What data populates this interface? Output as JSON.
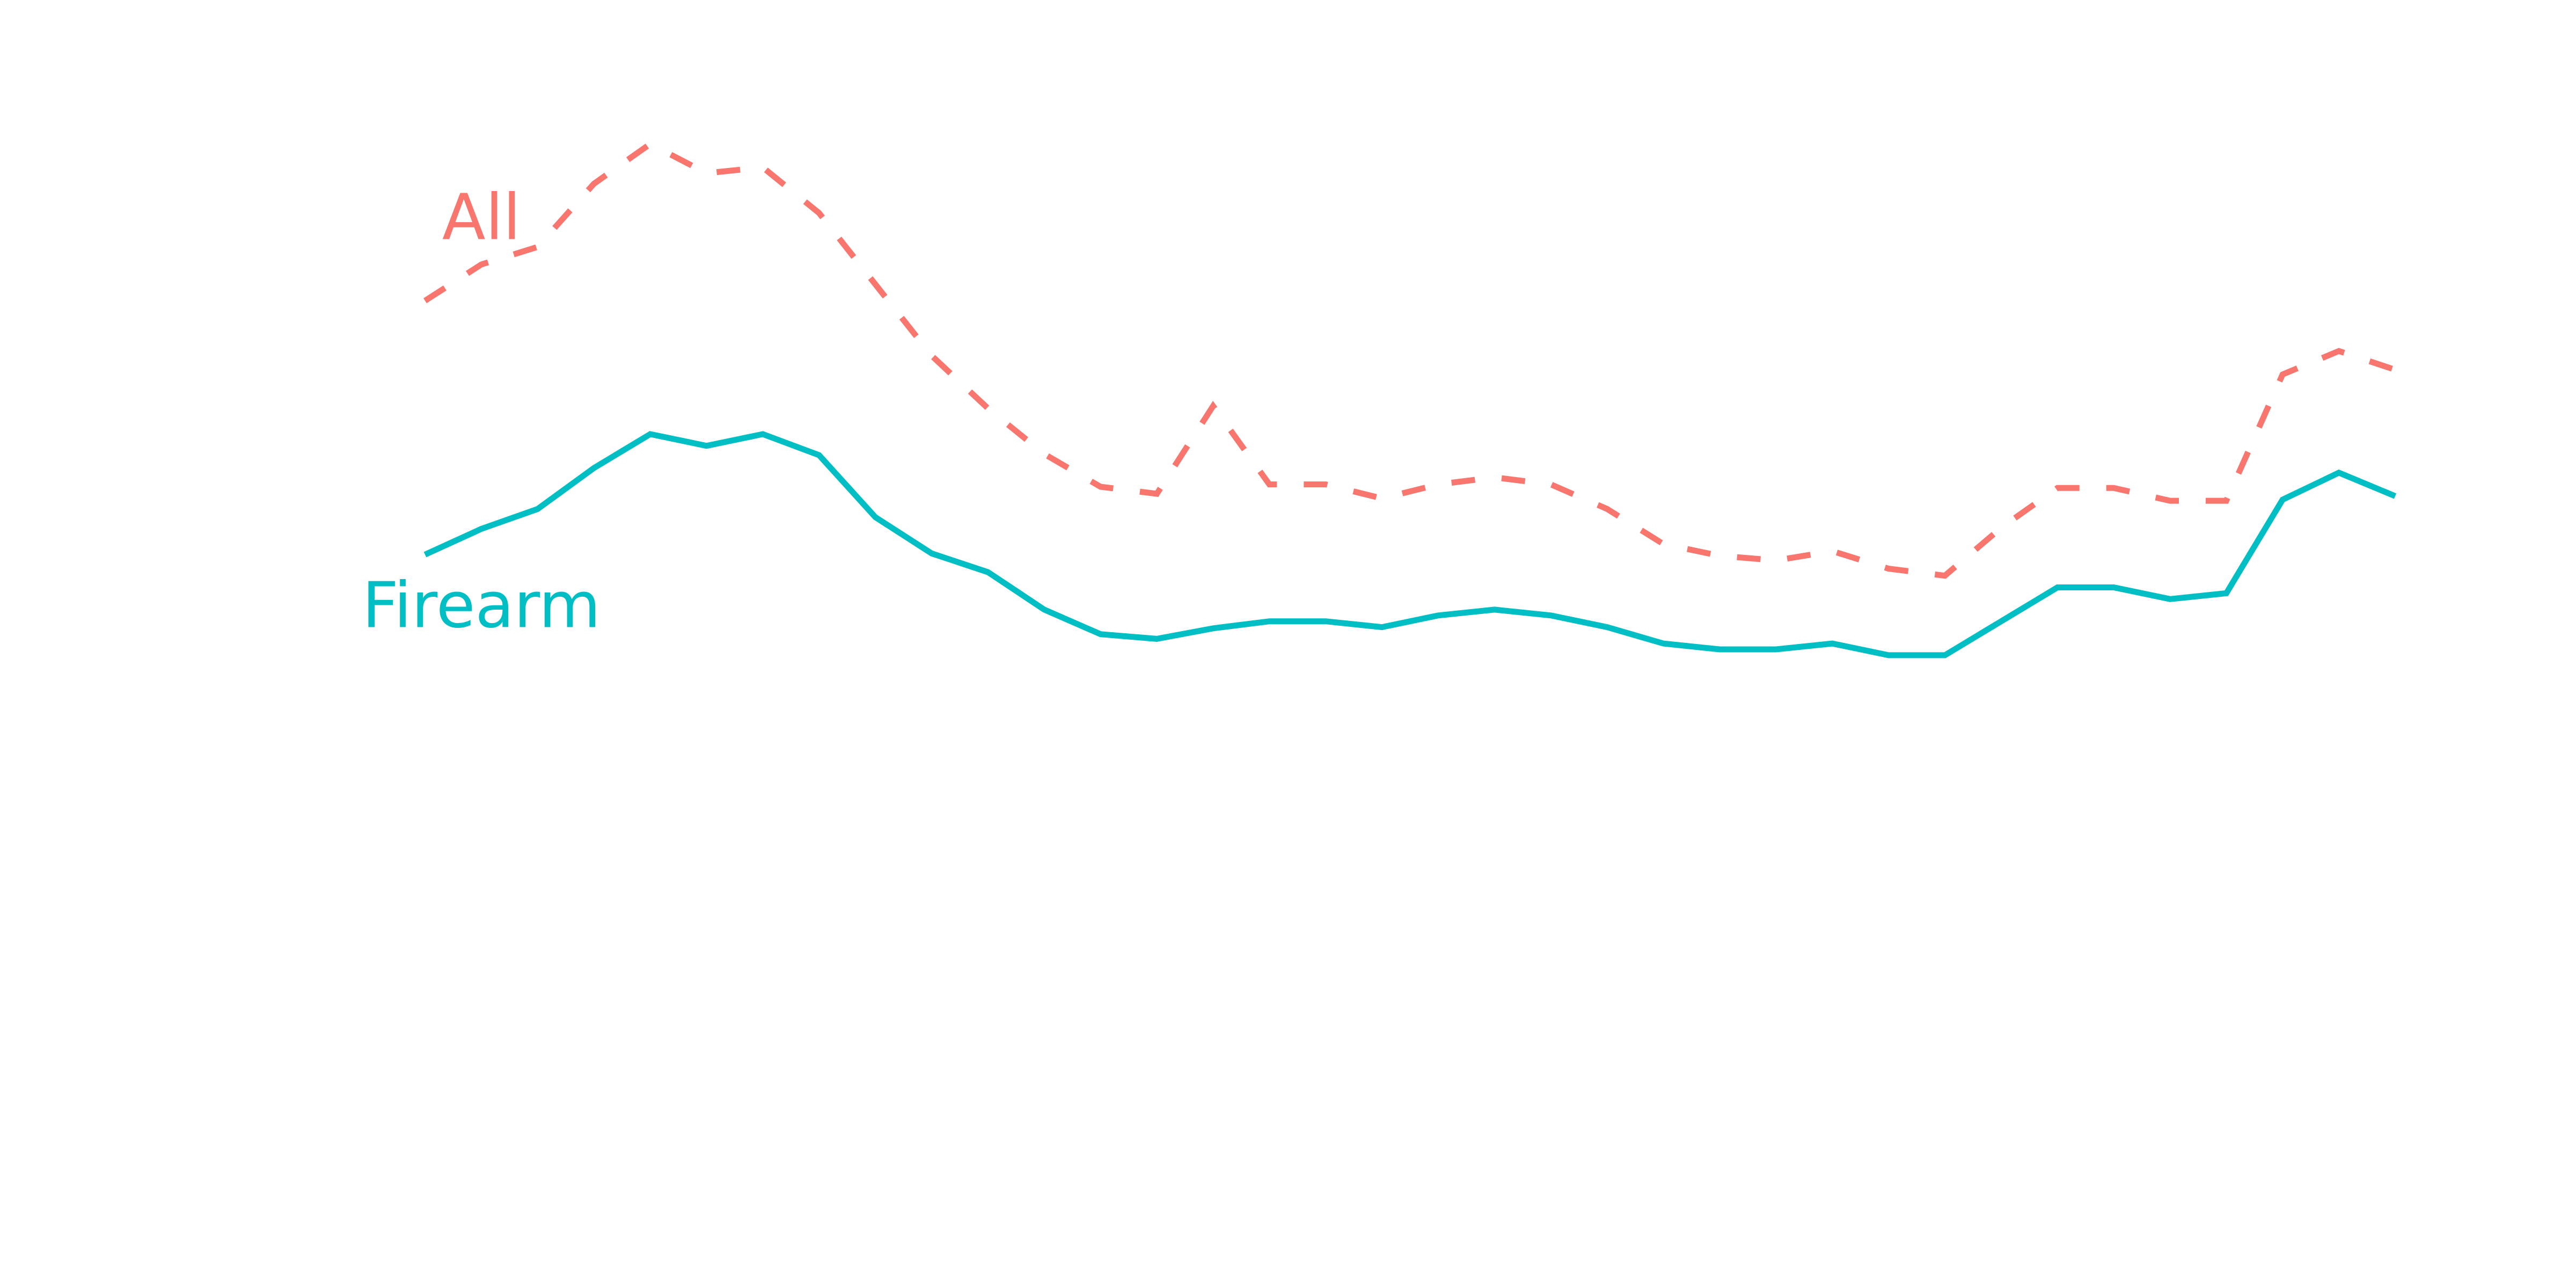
{
  "chart_data": {
    "type": "line",
    "title": "",
    "xlabel": "",
    "ylabel": "",
    "grid": false,
    "legend": "direct-labels",
    "x": [
      1,
      2,
      3,
      4,
      5,
      6,
      7,
      8,
      9,
      10,
      11,
      12,
      13,
      14,
      15,
      16,
      17,
      18,
      19,
      20,
      21,
      22,
      23,
      24,
      25,
      26,
      27,
      28,
      29,
      30,
      31,
      32,
      33,
      34,
      35,
      36,
      37
    ],
    "xlim": [
      1,
      37
    ],
    "ylim": [
      0,
      100
    ],
    "series": [
      {
        "name": "All",
        "color": "#F8766D",
        "dash": "dashed",
        "values": [
          79.8,
          82.9,
          84.4,
          89.8,
          93.2,
          90.7,
          91.2,
          87.3,
          81.2,
          75.1,
          70.6,
          66.7,
          63.9,
          63.3,
          70.8,
          64.1,
          64.1,
          62.9,
          64.1,
          64.7,
          64.1,
          62.0,
          59.0,
          58.0,
          57.6,
          58.4,
          56.9,
          56.3,
          60.4,
          63.8,
          63.8,
          62.7,
          62.7,
          73.5,
          75.5,
          73.9,
          null
        ]
      },
      {
        "name": "Firearm",
        "color": "#00BFC4",
        "dash": "solid",
        "values": [
          58.1,
          60.3,
          62.0,
          65.5,
          68.4,
          67.4,
          68.4,
          66.6,
          61.3,
          58.2,
          56.6,
          53.4,
          51.3,
          50.9,
          51.8,
          52.4,
          52.4,
          51.9,
          52.9,
          53.4,
          52.9,
          51.9,
          50.5,
          50.0,
          50.0,
          50.5,
          49.5,
          49.5,
          52.4,
          55.3,
          55.3,
          54.3,
          54.8,
          62.8,
          65.1,
          63.1,
          null
        ]
      }
    ]
  }
}
